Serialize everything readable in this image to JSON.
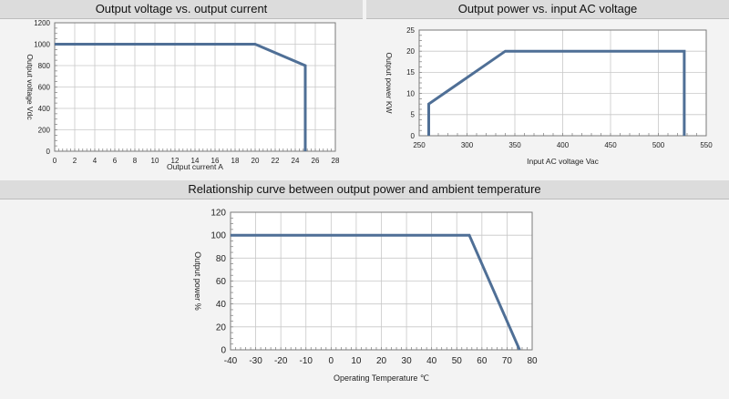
{
  "colors": {
    "curve": "#4f6f96",
    "grid": "#c8c8c8",
    "axis": "#7a7a7a",
    "plot_bg": "#ffffff",
    "header_bg": "#dcdcdc",
    "page_bg": "#f3f3f3"
  },
  "chart_data": [
    {
      "type": "line",
      "title": "Output voltage vs. output current",
      "xlabel": "Output current A",
      "ylabel": "Output voltage Vdc",
      "xlim": [
        0,
        28
      ],
      "ylim": [
        0,
        1200
      ],
      "xticks": [
        0,
        2,
        4,
        6,
        8,
        10,
        12,
        14,
        16,
        18,
        20,
        22,
        24,
        26,
        28
      ],
      "yticks": [
        0,
        200,
        400,
        600,
        800,
        1000,
        1200
      ],
      "grid": true,
      "series": [
        {
          "x": [
            0,
            20,
            25,
            25
          ],
          "y": [
            1000,
            1000,
            800,
            0
          ]
        }
      ]
    },
    {
      "type": "line",
      "title": "Output power vs. input AC voltage",
      "xlabel": "Input AC voltage Vac",
      "ylabel": "Output power KW",
      "xlim": [
        250,
        550
      ],
      "ylim": [
        0,
        25
      ],
      "xticks": [
        250,
        300,
        350,
        400,
        450,
        500,
        550
      ],
      "yticks": [
        0,
        5,
        10,
        15,
        20,
        25
      ],
      "grid": true,
      "series": [
        {
          "x": [
            260,
            260,
            340,
            527,
            527
          ],
          "y": [
            0,
            7.5,
            20,
            20,
            0
          ]
        }
      ]
    },
    {
      "type": "line",
      "title": "Relationship curve between output power and ambient temperature",
      "xlabel": "Operating Temperature ℃",
      "ylabel": "Output power %",
      "xlim": [
        -40,
        80
      ],
      "ylim": [
        0,
        120
      ],
      "xticks": [
        -40,
        -30,
        -20,
        -10,
        0,
        10,
        20,
        30,
        40,
        50,
        60,
        70,
        80
      ],
      "yticks": [
        0,
        20,
        40,
        60,
        80,
        100,
        120
      ],
      "grid": true,
      "series": [
        {
          "x": [
            -40,
            55,
            75
          ],
          "y": [
            100,
            100,
            0
          ]
        }
      ]
    }
  ]
}
